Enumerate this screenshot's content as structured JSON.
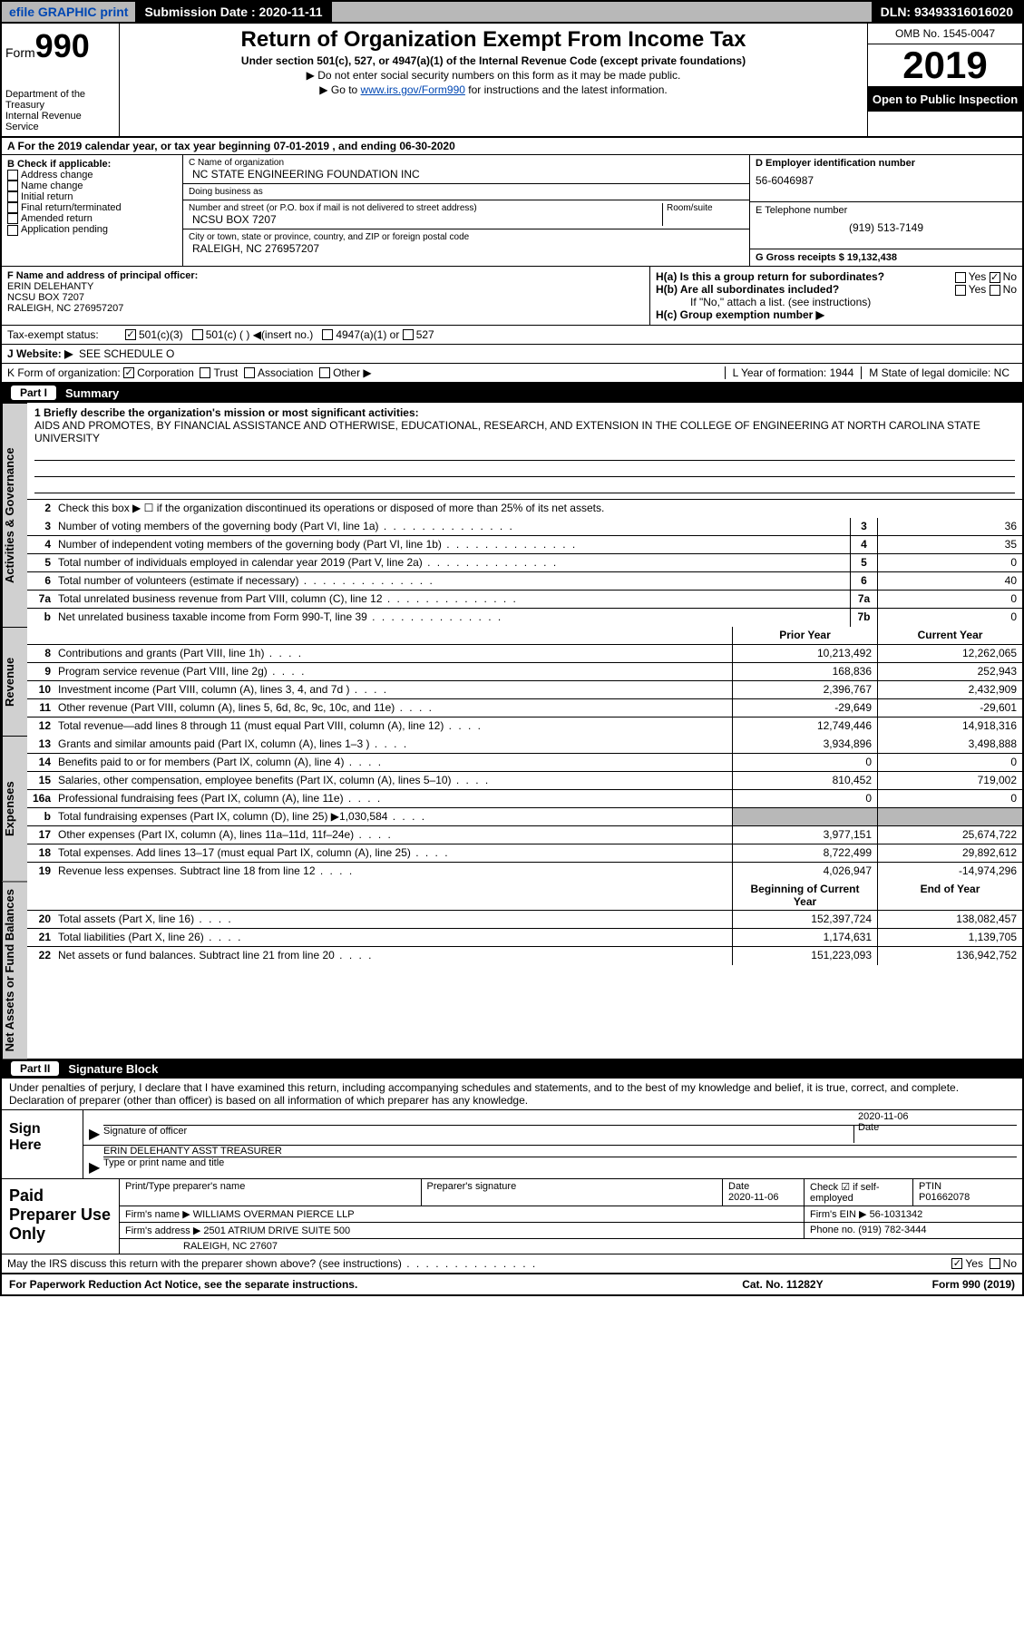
{
  "topbar": {
    "efile": "efile GRAPHIC print",
    "submission_label": "Submission Date : 2020-11-11",
    "dln": "DLN: 93493316016020"
  },
  "header": {
    "form_label": "Form",
    "form_number": "990",
    "dept": "Department of the Treasury\nInternal Revenue Service",
    "title": "Return of Organization Exempt From Income Tax",
    "subtitle": "Under section 501(c), 527, or 4947(a)(1) of the Internal Revenue Code (except private foundations)",
    "instr1": "Do not enter social security numbers on this form as it may be made public.",
    "instr2_pre": "Go to ",
    "instr2_link": "www.irs.gov/Form990",
    "instr2_post": " for instructions and the latest information.",
    "omb": "OMB No. 1545-0047",
    "year": "2019",
    "open_public": "Open to Public Inspection"
  },
  "row_a": "A For the 2019 calendar year, or tax year beginning 07-01-2019   , and ending 06-30-2020",
  "box_b": {
    "label": "B Check if applicable:",
    "items": [
      "Address change",
      "Name change",
      "Initial return",
      "Final return/terminated",
      "Amended return",
      "Application pending"
    ]
  },
  "box_c": {
    "name_label": "C Name of organization",
    "name": "NC STATE ENGINEERING FOUNDATION INC",
    "dba_label": "Doing business as",
    "dba": "",
    "addr_label": "Number and street (or P.O. box if mail is not delivered to street address)",
    "room_label": "Room/suite",
    "addr": "NCSU BOX 7207",
    "city_label": "City or town, state or province, country, and ZIP or foreign postal code",
    "city": "RALEIGH, NC  276957207"
  },
  "box_d": {
    "label": "D Employer identification number",
    "val": "56-6046987"
  },
  "box_e": {
    "label": "E Telephone number",
    "val": "(919) 513-7149"
  },
  "box_g": {
    "label": "G Gross receipts $ 19,132,438"
  },
  "box_f": {
    "label": "F  Name and address of principal officer:",
    "name": "ERIN DELEHANTY",
    "addr1": "NCSU BOX 7207",
    "addr2": "RALEIGH, NC  276957207"
  },
  "box_h": {
    "ha": "H(a)  Is this a group return for subordinates?",
    "ha_yes": "Yes",
    "ha_no": "No",
    "hb": "H(b)  Are all subordinates included?",
    "hb_yes": "Yes",
    "hb_no": "No",
    "hb_note": "If \"No,\" attach a list. (see instructions)",
    "hc": "H(c)  Group exemption number ▶"
  },
  "tax_exempt": {
    "label": "Tax-exempt status:",
    "opt1": "501(c)(3)",
    "opt2": "501(c) (  ) ◀(insert no.)",
    "opt3": "4947(a)(1) or",
    "opt4": "527"
  },
  "website": {
    "label": "J   Website: ▶",
    "val": "SEE SCHEDULE O"
  },
  "box_k": {
    "label": "K Form of organization:",
    "opts": [
      "Corporation",
      "Trust",
      "Association",
      "Other ▶"
    ]
  },
  "box_l": {
    "label": "L Year of formation: 1944"
  },
  "box_m": {
    "label": "M State of legal domicile: NC"
  },
  "part1": {
    "hdr": "Part I",
    "title": "Summary",
    "q1": "1   Briefly describe the organization's mission or most significant activities:",
    "mission": "AIDS AND PROMOTES, BY FINANCIAL ASSISTANCE AND OTHERWISE, EDUCATIONAL, RESEARCH, AND EXTENSION IN THE COLLEGE OF ENGINEERING AT NORTH CAROLINA STATE UNIVERSITY",
    "q2": "Check this box ▶ ☐  if the organization discontinued its operations or disposed of more than 25% of its net assets.",
    "vtabs": {
      "ag": "Activities & Governance",
      "rev": "Revenue",
      "exp": "Expenses",
      "na": "Net Assets or Fund Balances"
    },
    "col_prior": "Prior Year",
    "col_current": "Current Year",
    "col_boy": "Beginning of Current Year",
    "col_eoy": "End of Year",
    "lines_ag": [
      {
        "n": "3",
        "t": "Number of voting members of the governing body (Part VI, line 1a)",
        "box": "3",
        "v": "36"
      },
      {
        "n": "4",
        "t": "Number of independent voting members of the governing body (Part VI, line 1b)",
        "box": "4",
        "v": "35"
      },
      {
        "n": "5",
        "t": "Total number of individuals employed in calendar year 2019 (Part V, line 2a)",
        "box": "5",
        "v": "0"
      },
      {
        "n": "6",
        "t": "Total number of volunteers (estimate if necessary)",
        "box": "6",
        "v": "40"
      },
      {
        "n": "7a",
        "t": "Total unrelated business revenue from Part VIII, column (C), line 12",
        "box": "7a",
        "v": "0"
      },
      {
        "n": "b",
        "t": "Net unrelated business taxable income from Form 990-T, line 39",
        "box": "7b",
        "v": "0"
      }
    ],
    "lines_rev": [
      {
        "n": "8",
        "t": "Contributions and grants (Part VIII, line 1h)",
        "py": "10,213,492",
        "cy": "12,262,065"
      },
      {
        "n": "9",
        "t": "Program service revenue (Part VIII, line 2g)",
        "py": "168,836",
        "cy": "252,943"
      },
      {
        "n": "10",
        "t": "Investment income (Part VIII, column (A), lines 3, 4, and 7d )",
        "py": "2,396,767",
        "cy": "2,432,909"
      },
      {
        "n": "11",
        "t": "Other revenue (Part VIII, column (A), lines 5, 6d, 8c, 9c, 10c, and 11e)",
        "py": "-29,649",
        "cy": "-29,601"
      },
      {
        "n": "12",
        "t": "Total revenue—add lines 8 through 11 (must equal Part VIII, column (A), line 12)",
        "py": "12,749,446",
        "cy": "14,918,316"
      }
    ],
    "lines_exp": [
      {
        "n": "13",
        "t": "Grants and similar amounts paid (Part IX, column (A), lines 1–3 )",
        "py": "3,934,896",
        "cy": "3,498,888"
      },
      {
        "n": "14",
        "t": "Benefits paid to or for members (Part IX, column (A), line 4)",
        "py": "0",
        "cy": "0"
      },
      {
        "n": "15",
        "t": "Salaries, other compensation, employee benefits (Part IX, column (A), lines 5–10)",
        "py": "810,452",
        "cy": "719,002"
      },
      {
        "n": "16a",
        "t": "Professional fundraising fees (Part IX, column (A), line 11e)",
        "py": "0",
        "cy": "0"
      },
      {
        "n": "b",
        "t": "Total fundraising expenses (Part IX, column (D), line 25) ▶1,030,584",
        "py": "",
        "cy": ""
      },
      {
        "n": "17",
        "t": "Other expenses (Part IX, column (A), lines 11a–11d, 11f–24e)",
        "py": "3,977,151",
        "cy": "25,674,722"
      },
      {
        "n": "18",
        "t": "Total expenses. Add lines 13–17 (must equal Part IX, column (A), line 25)",
        "py": "8,722,499",
        "cy": "29,892,612"
      },
      {
        "n": "19",
        "t": "Revenue less expenses. Subtract line 18 from line 12",
        "py": "4,026,947",
        "cy": "-14,974,296"
      }
    ],
    "lines_na": [
      {
        "n": "20",
        "t": "Total assets (Part X, line 16)",
        "py": "152,397,724",
        "cy": "138,082,457"
      },
      {
        "n": "21",
        "t": "Total liabilities (Part X, line 26)",
        "py": "1,174,631",
        "cy": "1,139,705"
      },
      {
        "n": "22",
        "t": "Net assets or fund balances. Subtract line 21 from line 20",
        "py": "151,223,093",
        "cy": "136,942,752"
      }
    ]
  },
  "part2": {
    "hdr": "Part II",
    "title": "Signature Block",
    "decl": "Under penalties of perjury, I declare that I have examined this return, including accompanying schedules and statements, and to the best of my knowledge and belief, it is true, correct, and complete. Declaration of preparer (other than officer) is based on all information of which preparer has any knowledge.",
    "sign_here": "Sign Here",
    "sig_officer": "Signature of officer",
    "sig_date": "2020-11-06",
    "date_lbl": "Date",
    "officer_name": "ERIN DELEHANTY ASST TREASURER",
    "type_lbl": "Type or print name and title",
    "paid": "Paid Preparer Use Only",
    "p_name_lbl": "Print/Type preparer's name",
    "p_sig_lbl": "Preparer's signature",
    "p_date_lbl": "Date",
    "p_date": "2020-11-06",
    "p_check_lbl": "Check ☑ if self-employed",
    "ptin_lbl": "PTIN",
    "ptin": "P01662078",
    "firm_name_lbl": "Firm's name    ▶",
    "firm_name": "WILLIAMS OVERMAN PIERCE LLP",
    "firm_ein_lbl": "Firm's EIN ▶",
    "firm_ein": "56-1031342",
    "firm_addr_lbl": "Firm's address ▶",
    "firm_addr1": "2501 ATRIUM DRIVE SUITE 500",
    "firm_addr2": "RALEIGH, NC  27607",
    "phone_lbl": "Phone no.",
    "phone": "(919) 782-3444",
    "discuss": "May the IRS discuss this return with the preparer shown above? (see instructions)",
    "discuss_yes": "Yes",
    "discuss_no": "No"
  },
  "footer": {
    "left": "For Paperwork Reduction Act Notice, see the separate instructions.",
    "mid": "Cat. No. 11282Y",
    "right": "Form 990 (2019)"
  },
  "colors": {
    "bar_bg": "#b8b8b8",
    "link": "#0047b3"
  }
}
